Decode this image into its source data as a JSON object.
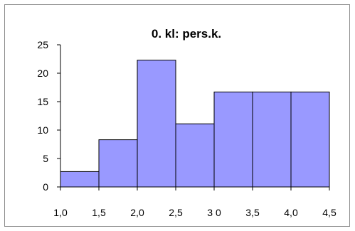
{
  "chart_data": {
    "type": "bar",
    "title": "0. kl: pers.k.",
    "xlabel": "",
    "ylabel": "",
    "bins": [
      {
        "x0": 1.0,
        "x1": 1.5,
        "value": 2.7
      },
      {
        "x0": 1.5,
        "x1": 2.0,
        "value": 8.3
      },
      {
        "x0": 2.0,
        "x1": 2.5,
        "value": 22.3
      },
      {
        "x0": 2.5,
        "x1": 3.0,
        "value": 11.1
      },
      {
        "x0": 3.0,
        "x1": 3.5,
        "value": 16.7
      },
      {
        "x0": 3.5,
        "x1": 4.0,
        "value": 16.7
      },
      {
        "x0": 4.0,
        "x1": 4.5,
        "value": 16.7
      }
    ],
    "xlim": [
      1.0,
      4.5
    ],
    "ylim": [
      0,
      25
    ],
    "x_ticks": [
      1.0,
      1.5,
      2.0,
      2.5,
      3.0,
      3.5,
      4.0,
      4.5
    ],
    "x_tick_labels": [
      "1,0",
      "1,5",
      "2,0",
      "2,5",
      "3 0",
      "3,5",
      "4,0",
      "4,5"
    ],
    "y_ticks": [
      0,
      5,
      10,
      15,
      20,
      25
    ],
    "y_tick_labels": [
      "0",
      "5",
      "10",
      "15",
      "20",
      "25"
    ],
    "grid": false,
    "legend": "none",
    "colors": {
      "bar_fill": "#9999ff",
      "bar_stroke": "#000000",
      "axis": "#000000",
      "frame": "#8c8c8c"
    }
  }
}
